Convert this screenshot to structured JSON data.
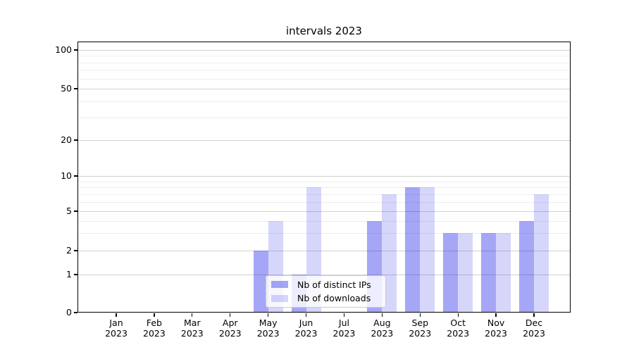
{
  "title": "intervals 2023",
  "chart_data": {
    "type": "bar",
    "title": "intervals 2023",
    "categories": [
      "Jan",
      "Feb",
      "Mar",
      "Apr",
      "May",
      "Jun",
      "Jul",
      "Aug",
      "Sep",
      "Oct",
      "Nov",
      "Dec"
    ],
    "x_year": "2023",
    "series": [
      {
        "name": "Nb of distinct IPs",
        "color": "rgba(0,0,230,0.35)",
        "values": [
          0,
          0,
          0,
          0,
          2,
          1,
          0,
          4,
          8,
          3,
          3,
          4
        ]
      },
      {
        "name": "Nb of downloads",
        "color": "rgba(0,0,230,0.16)",
        "values": [
          0,
          0,
          0,
          0,
          4,
          8,
          0,
          7,
          8,
          3,
          3,
          7
        ]
      }
    ],
    "y_axis": {
      "ticks": [
        0,
        1,
        2,
        5,
        10,
        20,
        50,
        100
      ],
      "minor_ticks": [
        3,
        4,
        6,
        7,
        8,
        9,
        30,
        40,
        60,
        70,
        80,
        90
      ],
      "scale": "log-like with linear 0-1 segment",
      "ylim": [
        0,
        117
      ]
    },
    "legend": {
      "position": "lower center",
      "labels": [
        "Nb of distinct IPs",
        "Nb of downloads"
      ]
    },
    "grid": "on"
  }
}
